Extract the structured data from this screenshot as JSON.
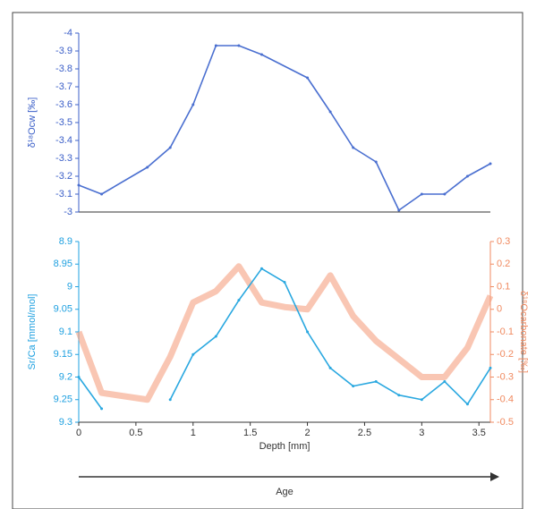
{
  "chart_data": [
    {
      "type": "line",
      "ylabel": "δ¹⁸Ocw [‰]",
      "xlim": [
        0,
        3.6
      ],
      "ylim": [
        -3,
        -4
      ],
      "yticks": [
        -4,
        -3.9,
        -3.8,
        -3.7,
        -3.6,
        -3.5,
        -3.4,
        -3.3,
        -3.2,
        -3.1,
        -3
      ],
      "axis_color": "#3b5fc8",
      "x": [
        0,
        0.2,
        0.6,
        0.8,
        1.0,
        1.2,
        1.4,
        1.6,
        2.0,
        2.2,
        2.4,
        2.6,
        2.8,
        3.0,
        3.2,
        3.4,
        3.6
      ],
      "series": [
        {
          "name": "δ¹⁸Ocw",
          "color": "#4a6fd0",
          "values": [
            -3.15,
            -3.1,
            -3.25,
            -3.36,
            -3.6,
            -3.93,
            -3.93,
            -3.88,
            -3.75,
            -3.56,
            -3.36,
            -3.28,
            -3.01,
            -3.1,
            -3.1,
            -3.2,
            -3.27
          ]
        }
      ]
    },
    {
      "type": "line",
      "ylabel": "Sr/Ca [mmol/mol]",
      "y2label": "δ¹⁸Ocarbonate [‰]",
      "xlabel": "Depth [mm]",
      "annotation": "Age",
      "xlim": [
        0,
        3.6
      ],
      "xticks": [
        0,
        0.5,
        1,
        1.5,
        2,
        2.5,
        3,
        3.5
      ],
      "ylim": [
        9.3,
        8.9
      ],
      "yticks": [
        8.9,
        8.95,
        9,
        9.05,
        9.1,
        9.15,
        9.2,
        9.25,
        9.3
      ],
      "axis_color": "#1ea0e0",
      "y2lim": [
        -0.5,
        0.3
      ],
      "y2ticks": [
        0.3,
        0.2,
        0.1,
        0,
        -0.1,
        -0.2,
        -0.3,
        -0.4,
        -0.5
      ],
      "axis2_color": "#f08a60",
      "x": [
        0,
        0.2,
        0.6,
        0.8,
        1.0,
        1.2,
        1.4,
        1.6,
        1.8,
        2.0,
        2.2,
        2.4,
        2.6,
        2.8,
        3.0,
        3.2,
        3.4,
        3.6
      ],
      "series": [
        {
          "name": "δ¹⁸Ocarbonate",
          "color": "#f5a080",
          "axis": "y2",
          "values": [
            -0.1,
            -0.37,
            -0.4,
            -0.21,
            0.03,
            0.08,
            0.19,
            0.03,
            0.01,
            0.0,
            0.15,
            -0.03,
            -0.14,
            -0.22,
            -0.3,
            -0.3,
            -0.17,
            0.06
          ]
        },
        {
          "name": "Sr/Ca",
          "color": "#2aa8e0",
          "values": [
            9.2,
            9.27,
            null,
            9.25,
            9.15,
            9.11,
            9.03,
            8.96,
            8.99,
            9.1,
            9.18,
            9.22,
            9.21,
            9.24,
            9.25,
            9.21,
            9.26,
            9.18
          ]
        }
      ]
    }
  ]
}
